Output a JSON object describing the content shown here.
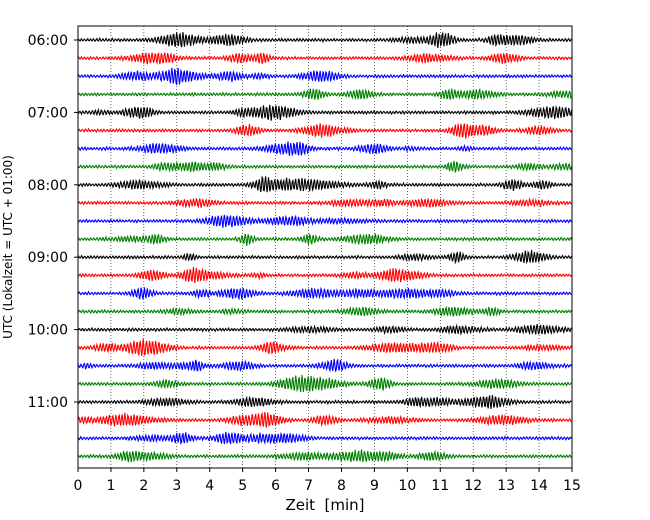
{
  "chart_data": {
    "type": "line",
    "chart_kind": "helicorder (dayplot) seismogram",
    "xlabel": "Zeit  [min]",
    "ylabel": "UTC (Lokalzeit = UTC + 01:00)",
    "xlim": [
      0,
      15
    ],
    "x_ticks": [
      "0",
      "1",
      "2",
      "3",
      "4",
      "5",
      "6",
      "7",
      "8",
      "9",
      "10",
      "11",
      "12",
      "13",
      "14",
      "15"
    ],
    "y_tick_labels": [
      "06:00",
      "07:00",
      "08:00",
      "09:00",
      "10:00",
      "11:00"
    ],
    "trace_interval_minutes": 15,
    "trace_start_times": [
      "06:00",
      "06:15",
      "06:30",
      "06:45",
      "07:00",
      "07:15",
      "07:30",
      "07:45",
      "08:00",
      "08:15",
      "08:30",
      "08:45",
      "09:00",
      "09:15",
      "09:30",
      "09:45",
      "10:00",
      "10:15",
      "10:30",
      "10:45",
      "11:00",
      "11:15",
      "11:30",
      "11:45"
    ],
    "color_cycle": [
      "#000000",
      "#ff0000",
      "#0000ff",
      "#008000"
    ],
    "vertical_grid": "dotted, every 1 min",
    "horizontal_grid": "none"
  }
}
